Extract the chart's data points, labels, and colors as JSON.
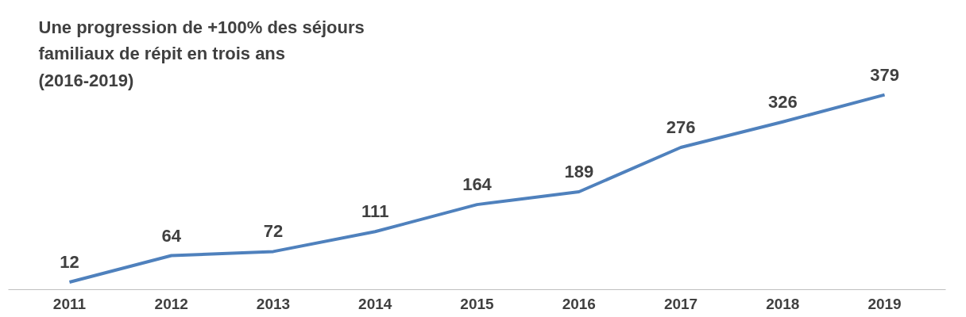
{
  "chart_data": {
    "type": "line",
    "title": "Une progression de +100% des séjours familiaux de répit en trois ans (2016-2019)",
    "categories": [
      "2011",
      "2012",
      "2013",
      "2014",
      "2015",
      "2016",
      "2017",
      "2018",
      "2019"
    ],
    "series": [
      {
        "color": "#4f81bd",
        "values": [
          12,
          64,
          72,
          111,
          164,
          189,
          276,
          326,
          379
        ]
      }
    ],
    "data_labels": true,
    "grid": false,
    "marker": "none",
    "line_style": "solid"
  }
}
